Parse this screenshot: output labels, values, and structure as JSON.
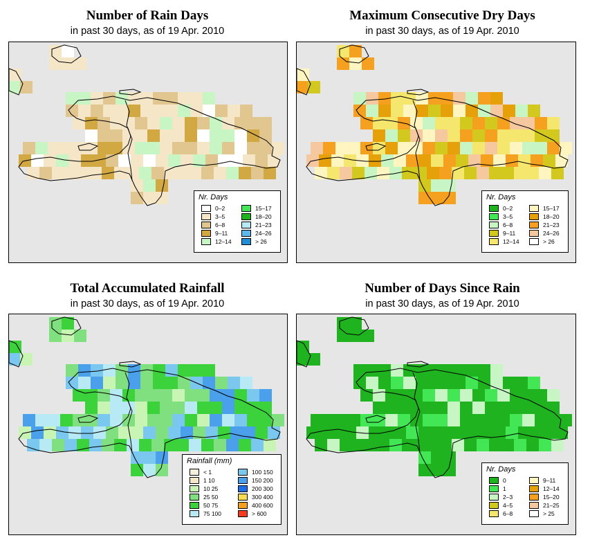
{
  "panels": {
    "rain_days": {
      "title": "Number of Rain Days",
      "subtitle": "in past 30 days, as of  19 Apr. 2010",
      "legend_title": "Nr. Days",
      "legend": [
        {
          "label": "0–2",
          "color": "#ffffff"
        },
        {
          "label": "3–5",
          "color": "#f5e6c8"
        },
        {
          "label": "6–8",
          "color": "#e2c690"
        },
        {
          "label": "9–11",
          "color": "#d2a843"
        },
        {
          "label": "12–14",
          "color": "#c8f5c4"
        },
        {
          "label": "15–17",
          "color": "#43e655"
        },
        {
          "label": "18–20",
          "color": "#1fb31f"
        },
        {
          "label": "21–23",
          "color": "#b8eaf5"
        },
        {
          "label": "24–26",
          "color": "#5fb7ea"
        },
        {
          "label": "> 26",
          "color": "#1f8ed2"
        }
      ]
    },
    "dry_days": {
      "title": "Maximum Consecutive Dry Days",
      "subtitle": "in past 30 days, as of  19 Apr. 2010",
      "legend_title": "Nr. Days",
      "legend": [
        {
          "label": "0–2",
          "color": "#1fb41f"
        },
        {
          "label": "3–5",
          "color": "#43e655"
        },
        {
          "label": "6–8",
          "color": "#c8f5c4"
        },
        {
          "label": "9–11",
          "color": "#d2c81e"
        },
        {
          "label": "12–14",
          "color": "#f5e66e"
        },
        {
          "label": "15–17",
          "color": "#fff5c0"
        },
        {
          "label": "18–20",
          "color": "#e6a00a"
        },
        {
          "label": "21–23",
          "color": "#f5a01e"
        },
        {
          "label": "24–26",
          "color": "#f5c8a0"
        },
        {
          "label": "> 26",
          "color": "#ffffff"
        }
      ]
    },
    "rainfall": {
      "title": "Total Accumulated Rainfall",
      "subtitle": "in past 30 days, as of  19 Apr. 2010",
      "legend_title": "Rainfall (mm)",
      "legend": [
        {
          "label": "< 1",
          "color": "#f5f0dc"
        },
        {
          "label": "1    10",
          "color": "#f5e6c8"
        },
        {
          "label": "10    25",
          "color": "#c8f5b4"
        },
        {
          "label": "25    50",
          "color": "#80e080"
        },
        {
          "label": "50    75",
          "color": "#3cd23c"
        },
        {
          "label": "75  100",
          "color": "#b8eaf5"
        },
        {
          "label": "100  150",
          "color": "#7ac8f0"
        },
        {
          "label": "150  200",
          "color": "#4aa0eb"
        },
        {
          "label": "200  300",
          "color": "#1e6ee6"
        },
        {
          "label": "300  400",
          "color": "#f5dc50"
        },
        {
          "label": "400  600",
          "color": "#f5a01e"
        },
        {
          "label": "> 600",
          "color": "#f53c1e"
        }
      ]
    },
    "since_rain": {
      "title": "Number of Days Since Rain",
      "subtitle": "in past 30 days, as of  19 Apr. 2010",
      "legend_title": "Nr. Days",
      "legend": [
        {
          "label": "0",
          "color": "#1fb41f"
        },
        {
          "label": "1",
          "color": "#43e655"
        },
        {
          "label": "2–3",
          "color": "#c8f5c4"
        },
        {
          "label": "4–5",
          "color": "#d2c81e"
        },
        {
          "label": "6–8",
          "color": "#f5e66e"
        },
        {
          "label": "9–11",
          "color": "#fff5c0"
        },
        {
          "label": "12–14",
          "color": "#e6a00a"
        },
        {
          "label": "15–20",
          "color": "#f5a01e"
        },
        {
          "label": "21–25",
          "color": "#f5c8a0"
        },
        {
          "label": "> 25",
          "color": "#ffffff"
        }
      ]
    }
  }
}
